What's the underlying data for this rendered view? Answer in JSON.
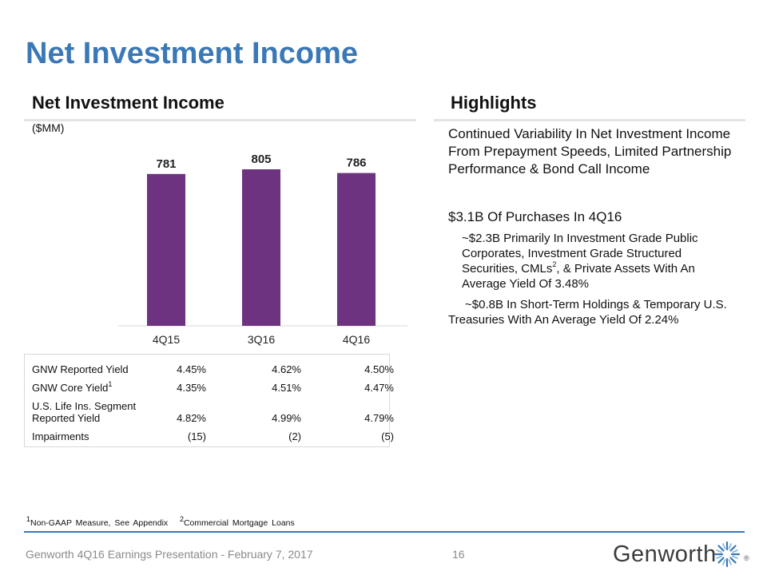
{
  "slide": {
    "title": "Net Investment Income",
    "left_heading": "Net Investment Income",
    "right_heading": "Highlights",
    "units": "($MM)"
  },
  "chart_data": {
    "type": "bar",
    "title": "Net Investment Income",
    "ylabel": "($MM)",
    "categories": [
      "4Q15",
      "3Q16",
      "4Q16"
    ],
    "values": [
      781,
      805,
      786
    ],
    "data_labels": [
      "781",
      "805",
      "786"
    ],
    "bar_color": "#6e3380",
    "ylim": [
      0,
      805
    ],
    "grid": false
  },
  "yield_table": {
    "rows": [
      {
        "label": "GNW Reported Yield",
        "sup": "",
        "values": [
          "4.45%",
          "4.62%",
          "4.50%"
        ]
      },
      {
        "label": "GNW Core Yield",
        "sup": "1",
        "values": [
          "4.35%",
          "4.51%",
          "4.47%"
        ]
      },
      {
        "label_line1": "U.S. Life Ins. Segment",
        "label": "Reported Yield",
        "sup": "",
        "values": [
          "4.82%",
          "4.99%",
          "4.79%"
        ]
      },
      {
        "label": "Impairments",
        "sup": "",
        "values": [
          "(15)",
          "(2)",
          "(5)"
        ]
      }
    ]
  },
  "highlights": {
    "p1": "Continued Variability In Net Investment Income From Prepayment Speeds, Limited Partnership Performance & Bond Call Income",
    "p2": "$3.1B Of Purchases In 4Q16",
    "b1_pre": "~$2.3B Primarily In Investment Grade Public Corporates, Investment Grade Structured Securities, CMLs",
    "b1_sup": "2",
    "b1_post": ", & Private Assets With An Average Yield Of 3.48%",
    "b2": "~$0.8B In Short-Term Holdings & Temporary U.S. Treasuries With An Average Yield Of 2.24%"
  },
  "footnotes": {
    "f1_sup": "1",
    "f1": "Non-GAAP Measure, See Appendix",
    "f2_sup": "2",
    "f2": "Commercial Mortgage Loans"
  },
  "footer": {
    "text": "Genworth 4Q16 Earnings Presentation - February 7, 2017",
    "page": "16",
    "logo": "Genworth",
    "reg": "®"
  },
  "colors": {
    "title": "#3a78b6",
    "bar": "#6e3380",
    "footer_rule": "#3a78b6"
  }
}
